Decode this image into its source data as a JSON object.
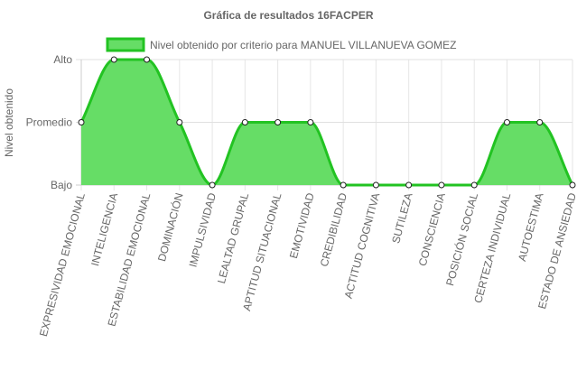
{
  "chart_data": {
    "type": "area",
    "title": "Gráfica de resultados 16FACPER",
    "ylabel": "Nivel obtenido",
    "xlabel": "",
    "y_levels": [
      "Bajo",
      "Promedio",
      "Alto"
    ],
    "categories": [
      "EXPRESIVIDAD EMOCIONAL",
      "INTELIGENCIA",
      "ESTABILIDAD EMOCIONAL",
      "DOMINACIÓN",
      "IMPULSIVIDAD",
      "LEALTAD GRUPAL",
      "APTITUD SITUACIONAL",
      "EMOTIVIDAD",
      "CREDIBILIDAD",
      "ACTITUD COGNITIVA",
      "SUTILEZA",
      "CONSCIENCIA",
      "POSICIÓN SOCIAL",
      "CERTEZA INDIVIDUAL",
      "AUTOESTIMA",
      "ESTADO DE ANSIEDAD"
    ],
    "series": [
      {
        "name": "Nivel obtenido por criterio para MANUEL VILLANUEVA GOMEZ",
        "values": [
          2,
          3,
          3,
          2,
          1,
          2,
          2,
          2,
          1,
          1,
          1,
          1,
          1,
          2,
          2,
          1
        ],
        "fill_color": "#66dd66",
        "line_color": "#22c322"
      }
    ],
    "ylim": [
      1,
      3
    ],
    "grid": true,
    "legend_position": "top"
  }
}
